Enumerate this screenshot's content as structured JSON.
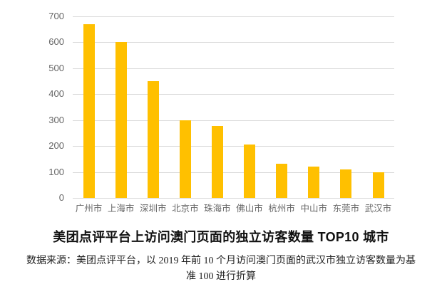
{
  "figure": {
    "title": "美团点评平台上访问澳门页面的独立访客数量 TOP10 城市",
    "source_note_line1": "数据来源：美团点评平台，以 2019 年前 10 个月访问澳门页面的武汉市独立访客数量为基",
    "source_note_line2": "准 100 进行折算",
    "colors": {
      "bar": "#FFC000",
      "gridline": "#D9D9D9",
      "tick_label": "#666666",
      "title_text": "#111111",
      "note_text": "#222222",
      "background": "#FFFFFF"
    }
  },
  "chart_data": {
    "type": "bar",
    "categories": [
      "广州市",
      "上海市",
      "深圳市",
      "北京市",
      "珠海市",
      "佛山市",
      "杭州市",
      "中山市",
      "东莞市",
      "武汉市"
    ],
    "values": [
      670,
      600,
      450,
      298,
      278,
      205,
      133,
      122,
      110,
      100
    ],
    "title": "美团点评平台上访问澳门页面的独立访客数量 TOP10 城市",
    "xlabel": "",
    "ylabel": "",
    "ylim": [
      0,
      700
    ],
    "yticks": [
      0,
      100,
      200,
      300,
      400,
      500,
      600,
      700
    ],
    "grid": true,
    "legend_position": "none",
    "bar_color": "#FFC000",
    "source_note": "数据来源：美团点评平台，以 2019 年前 10 个月访问澳门页面的武汉市独立访客数量为基准 100 进行折算"
  }
}
